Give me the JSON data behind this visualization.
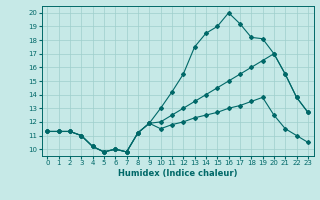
{
  "xlabel": "Humidex (Indice chaleur)",
  "bg_color": "#c6e9e7",
  "line_color": "#006868",
  "grid_color": "#9ecfcc",
  "xlim": [
    -0.5,
    23.5
  ],
  "ylim": [
    9.5,
    20.5
  ],
  "xticks": [
    0,
    1,
    2,
    3,
    4,
    5,
    6,
    7,
    8,
    9,
    10,
    11,
    12,
    13,
    14,
    15,
    16,
    17,
    18,
    19,
    20,
    21,
    22,
    23
  ],
  "yticks": [
    10,
    11,
    12,
    13,
    14,
    15,
    16,
    17,
    18,
    19,
    20
  ],
  "line1_x": [
    0,
    1,
    2,
    3,
    4,
    5,
    6,
    7,
    8,
    9,
    10,
    11,
    12,
    13,
    14,
    15,
    16,
    17,
    18,
    19,
    20,
    21,
    22,
    23
  ],
  "line1_y": [
    11.3,
    11.3,
    11.3,
    11.0,
    10.2,
    9.8,
    10.0,
    9.8,
    11.2,
    11.9,
    13.0,
    14.2,
    15.5,
    17.5,
    18.5,
    19.0,
    20.0,
    19.2,
    18.2,
    18.1,
    17.0,
    15.5,
    13.8,
    12.7
  ],
  "line2_x": [
    0,
    1,
    2,
    3,
    4,
    5,
    6,
    7,
    8,
    9,
    10,
    11,
    12,
    13,
    14,
    15,
    16,
    17,
    18,
    19,
    20,
    21,
    22,
    23
  ],
  "line2_y": [
    11.3,
    11.3,
    11.3,
    11.0,
    10.2,
    9.8,
    10.0,
    9.8,
    11.2,
    11.9,
    12.0,
    12.5,
    13.0,
    13.5,
    14.0,
    14.5,
    15.0,
    15.5,
    16.0,
    16.5,
    17.0,
    15.5,
    13.8,
    12.7
  ],
  "line3_x": [
    0,
    1,
    2,
    3,
    4,
    5,
    6,
    7,
    8,
    9,
    10,
    11,
    12,
    13,
    14,
    15,
    16,
    17,
    18,
    19,
    20,
    21,
    22,
    23
  ],
  "line3_y": [
    11.3,
    11.3,
    11.3,
    11.0,
    10.2,
    9.8,
    10.0,
    9.8,
    11.2,
    11.9,
    11.5,
    11.8,
    12.0,
    12.3,
    12.5,
    12.7,
    13.0,
    13.2,
    13.5,
    13.8,
    12.5,
    11.5,
    11.0,
    10.5
  ]
}
